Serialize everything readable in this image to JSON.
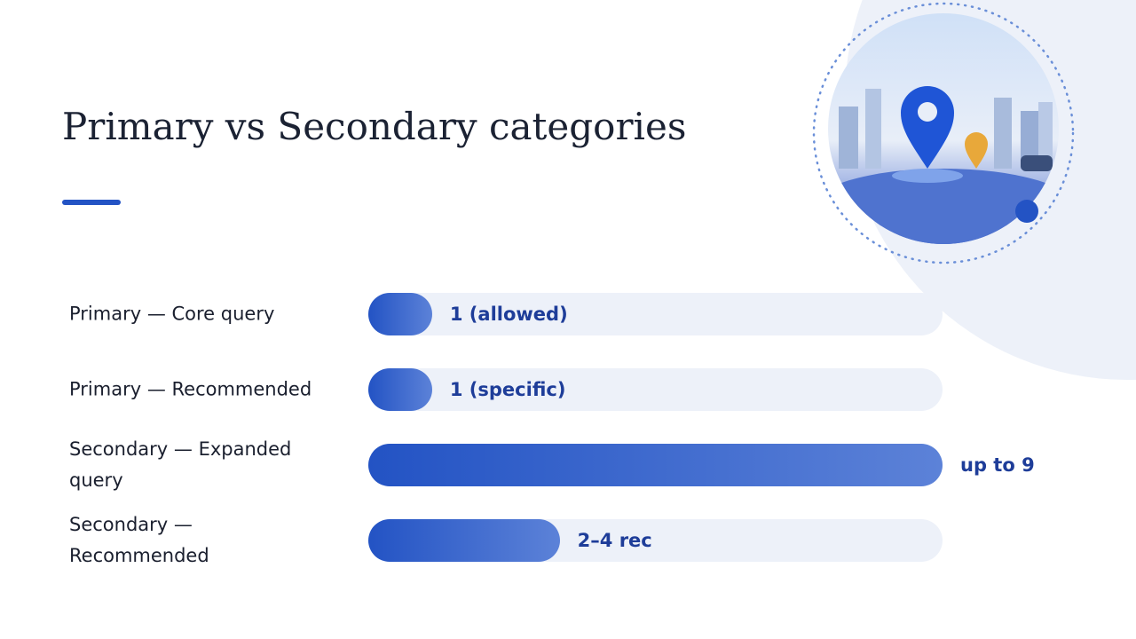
{
  "chart_data": {
    "type": "bar",
    "orientation": "horizontal",
    "title": "Primary vs Secondary categories",
    "categories": [
      "Primary — Core query",
      "Primary — Recommended",
      "Secondary — Expanded query",
      "Secondary — Recommended"
    ],
    "values": [
      1,
      1,
      9,
      3
    ],
    "value_labels": [
      "1 (allowed)",
      "1 (specific)",
      "up to 9",
      "2–4 rec"
    ],
    "xlim": [
      0,
      9
    ],
    "color": "#2353c4"
  }
}
